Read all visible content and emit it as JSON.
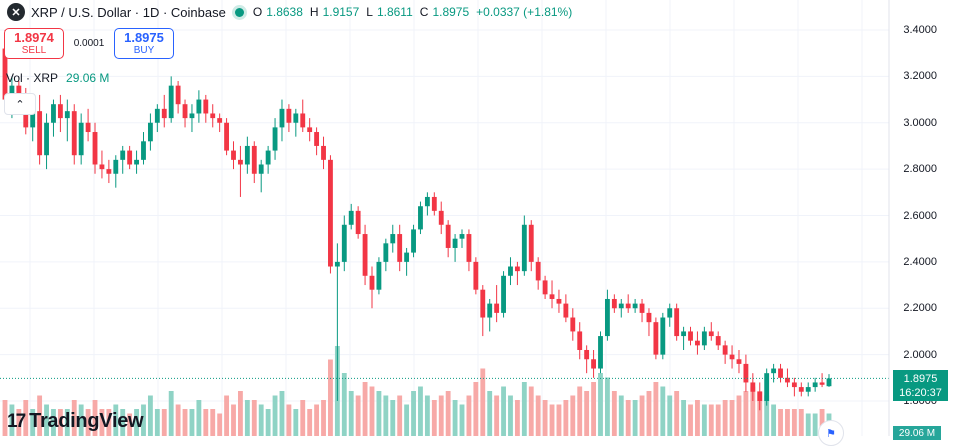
{
  "header": {
    "symbol_icon": "xrp-icon",
    "title": "XRP / U.S. Dollar · 1D · Coinbase",
    "ohlc": [
      {
        "k": "O",
        "v": "1.8638"
      },
      {
        "k": "H",
        "v": "1.9157"
      },
      {
        "k": "L",
        "v": "1.8611"
      },
      {
        "k": "C",
        "v": "1.8975"
      },
      {
        "k": "",
        "v": "+0.0337 (+1.81%)"
      }
    ]
  },
  "trade": {
    "sell_price": "1.8974",
    "sell_label": "SELL",
    "spread": "0.0001",
    "buy_price": "1.8975",
    "buy_label": "BUY"
  },
  "volume": {
    "label": "Vol · XRP",
    "value": "29.06 M"
  },
  "price_tag": {
    "price": "1.8975",
    "countdown": "16:20:37"
  },
  "volume_tag": "29.06 M",
  "brand": "TradingView",
  "colors": {
    "up": "#089981",
    "down": "#f23645",
    "vol_up": "#8fd3c5",
    "vol_down": "#f7a9a7",
    "grid": "#f0f3fa"
  },
  "chart_data": {
    "type": "candlestick",
    "ylim": [
      1.73,
      3.47
    ],
    "y_ticks": [
      "3.4000",
      "3.2000",
      "3.0000",
      "2.8000",
      "2.6000",
      "2.4000",
      "2.2000",
      "2.0000",
      "1.8000"
    ],
    "last_price": 1.8975,
    "candles": [
      [
        3.32,
        3.4,
        3.05,
        3.1
      ],
      [
        3.1,
        3.2,
        3.02,
        3.16
      ],
      [
        3.16,
        3.18,
        3.05,
        3.08
      ],
      [
        3.08,
        3.15,
        2.95,
        2.98
      ],
      [
        2.98,
        3.1,
        2.92,
        3.05
      ],
      [
        3.05,
        3.12,
        2.82,
        2.86
      ],
      [
        2.86,
        3.04,
        2.8,
        3.0
      ],
      [
        3.0,
        3.1,
        2.94,
        3.08
      ],
      [
        3.08,
        3.12,
        2.96,
        3.02
      ],
      [
        3.02,
        3.1,
        2.92,
        3.05
      ],
      [
        3.05,
        3.08,
        2.82,
        2.86
      ],
      [
        2.86,
        3.04,
        2.82,
        3.0
      ],
      [
        3.0,
        3.06,
        2.92,
        2.96
      ],
      [
        2.96,
        3.0,
        2.78,
        2.82
      ],
      [
        2.82,
        2.88,
        2.76,
        2.8
      ],
      [
        2.8,
        2.84,
        2.74,
        2.78
      ],
      [
        2.78,
        2.86,
        2.72,
        2.84
      ],
      [
        2.84,
        2.9,
        2.78,
        2.88
      ],
      [
        2.88,
        2.9,
        2.8,
        2.82
      ],
      [
        2.82,
        2.88,
        2.78,
        2.84
      ],
      [
        2.84,
        2.96,
        2.82,
        2.92
      ],
      [
        2.92,
        3.04,
        2.88,
        3.0
      ],
      [
        3.0,
        3.08,
        2.96,
        3.06
      ],
      [
        3.06,
        3.12,
        2.98,
        3.02
      ],
      [
        3.02,
        3.2,
        3.0,
        3.16
      ],
      [
        3.16,
        3.18,
        3.04,
        3.08
      ],
      [
        3.08,
        3.1,
        2.98,
        3.02
      ],
      [
        3.02,
        3.08,
        2.96,
        3.04
      ],
      [
        3.04,
        3.14,
        3.0,
        3.1
      ],
      [
        3.1,
        3.12,
        3.0,
        3.04
      ],
      [
        3.04,
        3.08,
        2.98,
        3.02
      ],
      [
        3.02,
        3.04,
        2.96,
        3.0
      ],
      [
        3.0,
        3.02,
        2.86,
        2.88
      ],
      [
        2.88,
        2.92,
        2.8,
        2.84
      ],
      [
        2.84,
        2.9,
        2.68,
        2.82
      ],
      [
        2.82,
        2.94,
        2.78,
        2.9
      ],
      [
        2.9,
        2.92,
        2.74,
        2.78
      ],
      [
        2.78,
        2.84,
        2.7,
        2.82
      ],
      [
        2.82,
        2.9,
        2.78,
        2.88
      ],
      [
        2.88,
        3.02,
        2.84,
        2.98
      ],
      [
        2.98,
        3.1,
        2.92,
        3.06
      ],
      [
        3.06,
        3.08,
        2.96,
        3.0
      ],
      [
        3.0,
        3.06,
        2.94,
        3.04
      ],
      [
        3.04,
        3.1,
        2.96,
        2.98
      ],
      [
        2.98,
        3.02,
        2.92,
        2.96
      ],
      [
        2.96,
        2.98,
        2.86,
        2.9
      ],
      [
        2.9,
        2.94,
        2.8,
        2.84
      ],
      [
        2.84,
        2.86,
        2.35,
        2.38
      ],
      [
        2.38,
        2.48,
        1.8,
        2.4
      ],
      [
        2.4,
        2.6,
        2.36,
        2.56
      ],
      [
        2.56,
        2.65,
        2.54,
        2.62
      ],
      [
        2.62,
        2.64,
        2.5,
        2.52
      ],
      [
        2.52,
        2.56,
        2.3,
        2.34
      ],
      [
        2.34,
        2.38,
        2.2,
        2.28
      ],
      [
        2.28,
        2.42,
        2.26,
        2.4
      ],
      [
        2.4,
        2.5,
        2.36,
        2.48
      ],
      [
        2.48,
        2.56,
        2.44,
        2.52
      ],
      [
        2.52,
        2.56,
        2.36,
        2.4
      ],
      [
        2.4,
        2.46,
        2.34,
        2.44
      ],
      [
        2.44,
        2.56,
        2.42,
        2.54
      ],
      [
        2.54,
        2.66,
        2.52,
        2.64
      ],
      [
        2.64,
        2.7,
        2.6,
        2.68
      ],
      [
        2.68,
        2.7,
        2.6,
        2.62
      ],
      [
        2.62,
        2.66,
        2.52,
        2.56
      ],
      [
        2.56,
        2.58,
        2.42,
        2.46
      ],
      [
        2.46,
        2.52,
        2.4,
        2.5
      ],
      [
        2.5,
        2.54,
        2.46,
        2.52
      ],
      [
        2.52,
        2.54,
        2.36,
        2.4
      ],
      [
        2.4,
        2.42,
        2.26,
        2.28
      ],
      [
        2.28,
        2.3,
        2.08,
        2.16
      ],
      [
        2.16,
        2.24,
        2.1,
        2.22
      ],
      [
        2.22,
        2.3,
        2.14,
        2.18
      ],
      [
        2.18,
        2.36,
        2.16,
        2.34
      ],
      [
        2.34,
        2.42,
        2.3,
        2.38
      ],
      [
        2.38,
        2.4,
        2.3,
        2.36
      ],
      [
        2.36,
        2.6,
        2.34,
        2.56
      ],
      [
        2.56,
        2.58,
        2.36,
        2.4
      ],
      [
        2.4,
        2.42,
        2.28,
        2.32
      ],
      [
        2.32,
        2.34,
        2.24,
        2.26
      ],
      [
        2.26,
        2.32,
        2.2,
        2.24
      ],
      [
        2.24,
        2.28,
        2.18,
        2.22
      ],
      [
        2.22,
        2.26,
        2.14,
        2.16
      ],
      [
        2.16,
        2.2,
        2.06,
        2.1
      ],
      [
        2.1,
        2.14,
        1.98,
        2.02
      ],
      [
        2.02,
        2.04,
        1.92,
        1.98
      ],
      [
        1.98,
        2.02,
        1.9,
        1.94
      ],
      [
        1.94,
        2.1,
        1.92,
        2.08
      ],
      [
        2.08,
        2.28,
        2.06,
        2.24
      ],
      [
        2.24,
        2.26,
        2.18,
        2.2
      ],
      [
        2.2,
        2.24,
        2.16,
        2.22
      ],
      [
        2.22,
        2.26,
        2.18,
        2.2
      ],
      [
        2.2,
        2.24,
        2.18,
        2.22
      ],
      [
        2.22,
        2.24,
        2.14,
        2.18
      ],
      [
        2.18,
        2.2,
        2.08,
        2.14
      ],
      [
        2.14,
        2.16,
        1.98,
        2.0
      ],
      [
        2.0,
        2.18,
        1.98,
        2.16
      ],
      [
        2.16,
        2.22,
        2.12,
        2.2
      ],
      [
        2.2,
        2.22,
        2.06,
        2.08
      ],
      [
        2.08,
        2.12,
        2.02,
        2.1
      ],
      [
        2.1,
        2.12,
        2.04,
        2.06
      ],
      [
        2.06,
        2.1,
        2.0,
        2.04
      ],
      [
        2.04,
        2.12,
        2.02,
        2.1
      ],
      [
        2.1,
        2.14,
        2.06,
        2.08
      ],
      [
        2.08,
        2.1,
        2.02,
        2.04
      ],
      [
        2.04,
        2.06,
        1.96,
        2.0
      ],
      [
        2.0,
        2.04,
        1.94,
        1.98
      ],
      [
        1.98,
        2.02,
        1.92,
        1.96
      ],
      [
        1.96,
        2.0,
        1.84,
        1.88
      ],
      [
        1.88,
        1.92,
        1.8,
        1.84
      ],
      [
        1.84,
        1.88,
        1.76,
        1.8
      ],
      [
        1.8,
        1.94,
        1.78,
        1.92
      ],
      [
        1.92,
        1.96,
        1.88,
        1.94
      ],
      [
        1.94,
        1.96,
        1.88,
        1.9
      ],
      [
        1.9,
        1.94,
        1.86,
        1.88
      ],
      [
        1.88,
        1.9,
        1.82,
        1.86
      ],
      [
        1.86,
        1.88,
        1.82,
        1.84
      ],
      [
        1.84,
        1.88,
        1.82,
        1.86
      ],
      [
        1.86,
        1.9,
        1.84,
        1.88
      ],
      [
        1.88,
        1.92,
        1.86,
        1.87
      ],
      [
        1.8638,
        1.9157,
        1.8611,
        1.8975
      ]
    ],
    "volumes": [
      0.4,
      0.35,
      0.3,
      0.4,
      0.3,
      0.45,
      0.35,
      0.3,
      0.3,
      0.3,
      0.4,
      0.35,
      0.3,
      0.4,
      0.3,
      0.3,
      0.35,
      0.3,
      0.25,
      0.3,
      0.35,
      0.45,
      0.3,
      0.3,
      0.5,
      0.35,
      0.3,
      0.3,
      0.4,
      0.3,
      0.3,
      0.25,
      0.45,
      0.35,
      0.5,
      0.4,
      0.4,
      0.35,
      0.3,
      0.45,
      0.5,
      0.35,
      0.3,
      0.4,
      0.3,
      0.35,
      0.4,
      0.85,
      1.0,
      0.7,
      0.5,
      0.45,
      0.6,
      0.55,
      0.5,
      0.45,
      0.4,
      0.45,
      0.35,
      0.5,
      0.55,
      0.45,
      0.4,
      0.45,
      0.5,
      0.4,
      0.35,
      0.45,
      0.6,
      0.75,
      0.5,
      0.45,
      0.55,
      0.45,
      0.4,
      0.6,
      0.55,
      0.45,
      0.4,
      0.35,
      0.35,
      0.4,
      0.45,
      0.55,
      0.5,
      0.6,
      0.7,
      0.65,
      0.5,
      0.45,
      0.4,
      0.4,
      0.45,
      0.5,
      0.6,
      0.55,
      0.45,
      0.5,
      0.4,
      0.35,
      0.4,
      0.35,
      0.35,
      0.35,
      0.4,
      0.4,
      0.45,
      0.5,
      0.55,
      0.5,
      0.45,
      0.35,
      0.3,
      0.3,
      0.3,
      0.3,
      0.25,
      0.25,
      0.3,
      0.25
    ]
  }
}
